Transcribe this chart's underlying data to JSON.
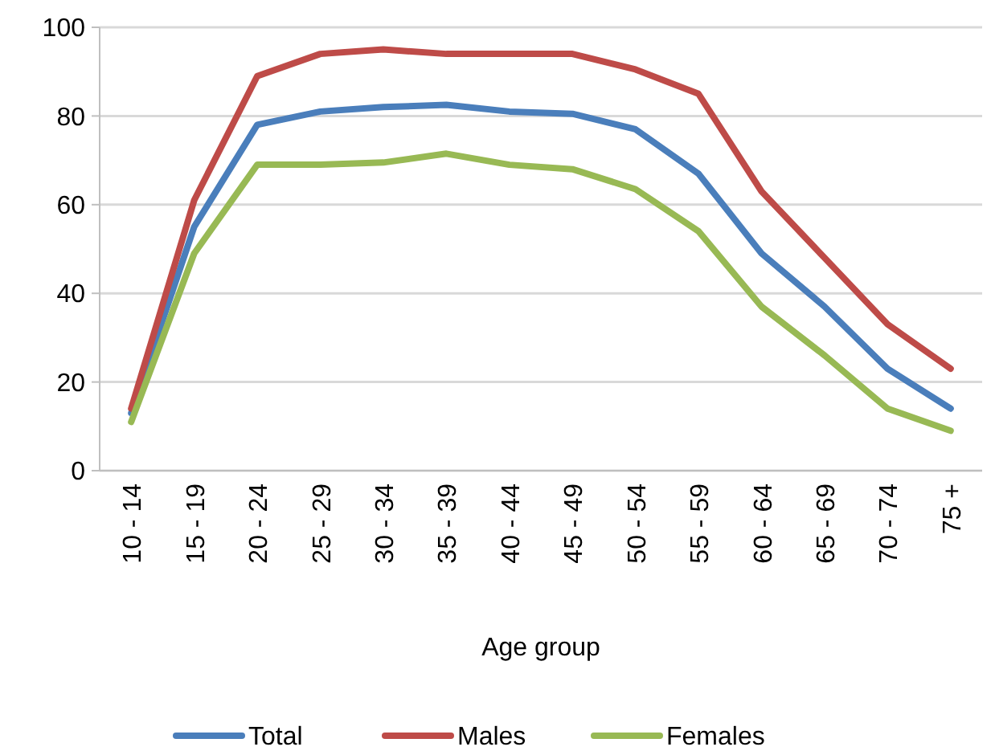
{
  "chart_data": {
    "type": "line",
    "xlabel": "Age group",
    "categories": [
      "10 - 14",
      "15 - 19",
      "20 - 24",
      "25 - 29",
      "30 - 34",
      "35 - 39",
      "40 - 44",
      "45 - 49",
      "50 - 54",
      "55 - 59",
      "60 - 64",
      "65 - 69",
      "70 - 74",
      "75 +"
    ],
    "series": [
      {
        "name": "Total",
        "color": "#4a7ebb",
        "values": [
          13,
          55,
          78,
          81,
          82,
          82.5,
          81,
          80.5,
          77,
          67,
          49,
          37,
          23,
          14
        ]
      },
      {
        "name": "Males",
        "color": "#be4b48",
        "values": [
          14,
          61,
          89,
          94,
          95,
          94,
          94,
          94,
          90.5,
          85,
          63,
          48,
          33,
          23
        ]
      },
      {
        "name": "Females",
        "color": "#98b954",
        "values": [
          11,
          49,
          69,
          69,
          69.5,
          71.5,
          69,
          68,
          63.5,
          54,
          37,
          26,
          14,
          9
        ]
      }
    ],
    "ylim": [
      0,
      100
    ],
    "yticks": [
      0,
      20,
      40,
      60,
      80,
      100
    ],
    "grid": "y",
    "legend": "bottom",
    "marker": "none",
    "line_style": "solid"
  }
}
